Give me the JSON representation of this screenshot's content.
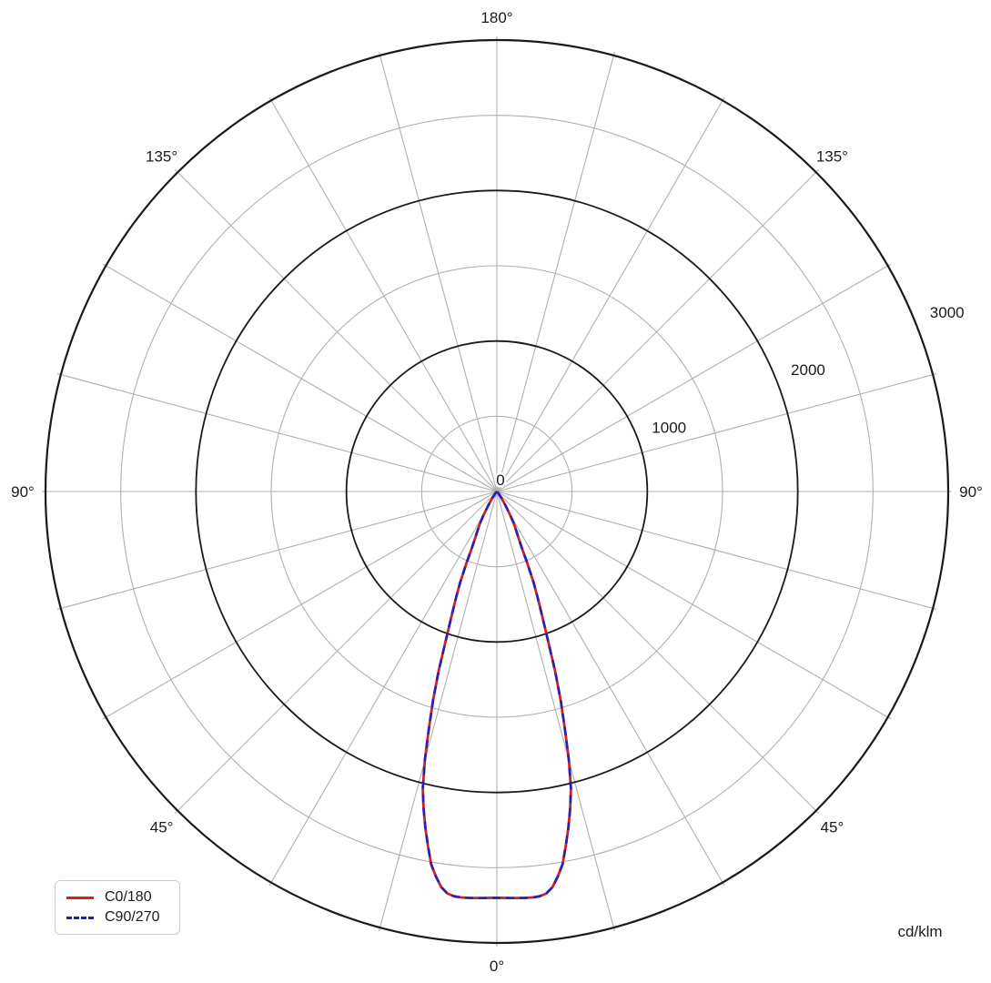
{
  "units_label": "cd/klm",
  "legend": {
    "entries": [
      {
        "label": "C0/180",
        "color": "#d62020",
        "line_style": "solid"
      },
      {
        "label": "C90/270",
        "color": "#2222bb",
        "line_style": "dashed"
      }
    ]
  },
  "colors": {
    "background": "#ffffff",
    "grid_minor": "#b0b0b0",
    "grid_major": "#1a1a1a",
    "text": "#1a1a1a",
    "legend_border": "#cccccc",
    "c0_series": "#d62020",
    "c90_series": "#2222bb"
  },
  "chart_data": {
    "type": "line",
    "layout": "polar",
    "title": "",
    "units": "cd/klm",
    "polar": {
      "zero_angle_position": "bottom",
      "angle_tick_step_deg": 15,
      "r_min": 0,
      "r_max": 3000,
      "minor_rings": [
        500,
        1500,
        2500
      ],
      "major_rings": [
        1000,
        2000,
        3000
      ],
      "ring_labels": [
        {
          "text": "0",
          "value": 0
        },
        {
          "text": "1000",
          "value": 1000
        },
        {
          "text": "2000",
          "value": 2000
        },
        {
          "text": "3000",
          "value": 3000
        }
      ],
      "angle_labels": [
        {
          "text": "0°",
          "angle_deg": 0
        },
        {
          "text": "45°",
          "angle_deg": 45
        },
        {
          "text": "45°",
          "angle_deg": -45
        },
        {
          "text": "90°",
          "angle_deg": 90
        },
        {
          "text": "90°",
          "angle_deg": -90
        },
        {
          "text": "135°",
          "angle_deg": 135
        },
        {
          "text": "135°",
          "angle_deg": -135
        },
        {
          "text": "180°",
          "angle_deg": 180
        }
      ],
      "grid_on": true,
      "legend_position": "bottom-left"
    },
    "series": [
      {
        "name": "C0/180",
        "color": "#d62020",
        "dash": "solid",
        "points_deg_cdklm": [
          [
            0,
            2700
          ],
          [
            1,
            2701
          ],
          [
            2,
            2703
          ],
          [
            3,
            2705
          ],
          [
            4,
            2707
          ],
          [
            5,
            2708
          ],
          [
            6,
            2705
          ],
          [
            7,
            2692
          ],
          [
            8,
            2655
          ],
          [
            9,
            2590
          ],
          [
            10,
            2515
          ],
          [
            11,
            2400
          ],
          [
            12,
            2285
          ],
          [
            13,
            2165
          ],
          [
            14,
            2035
          ],
          [
            15,
            1850
          ],
          [
            16,
            1640
          ],
          [
            17,
            1450
          ],
          [
            18,
            1250
          ],
          [
            19,
            1035
          ],
          [
            20,
            880
          ],
          [
            21,
            760
          ],
          [
            22,
            650
          ],
          [
            23,
            520
          ],
          [
            24,
            400
          ],
          [
            25,
            340
          ],
          [
            26,
            300
          ],
          [
            27,
            268
          ],
          [
            28,
            238
          ],
          [
            29,
            195
          ],
          [
            30,
            152
          ],
          [
            31,
            125
          ],
          [
            32,
            100
          ],
          [
            33,
            80
          ],
          [
            34,
            62
          ],
          [
            35,
            46
          ],
          [
            36,
            34
          ],
          [
            38,
            21
          ],
          [
            40,
            13
          ],
          [
            42,
            8
          ],
          [
            45,
            4
          ],
          [
            48,
            1
          ],
          [
            50,
            0
          ],
          [
            60,
            0
          ],
          [
            75,
            0
          ],
          [
            90,
            0
          ],
          [
            120,
            0
          ],
          [
            150,
            0
          ],
          [
            180,
            0
          ]
        ]
      },
      {
        "name": "C90/270",
        "color": "#2222bb",
        "dash": "dashed",
        "points_deg_cdklm": [
          [
            0,
            2700
          ],
          [
            1,
            2701
          ],
          [
            2,
            2703
          ],
          [
            3,
            2705
          ],
          [
            4,
            2707
          ],
          [
            5,
            2708
          ],
          [
            6,
            2705
          ],
          [
            7,
            2692
          ],
          [
            8,
            2655
          ],
          [
            9,
            2590
          ],
          [
            10,
            2515
          ],
          [
            11,
            2400
          ],
          [
            12,
            2285
          ],
          [
            13,
            2165
          ],
          [
            14,
            2035
          ],
          [
            15,
            1850
          ],
          [
            16,
            1640
          ],
          [
            17,
            1450
          ],
          [
            18,
            1250
          ],
          [
            19,
            1035
          ],
          [
            20,
            880
          ],
          [
            21,
            760
          ],
          [
            22,
            650
          ],
          [
            23,
            520
          ],
          [
            24,
            400
          ],
          [
            25,
            340
          ],
          [
            26,
            300
          ],
          [
            27,
            268
          ],
          [
            28,
            238
          ],
          [
            29,
            195
          ],
          [
            30,
            152
          ],
          [
            31,
            125
          ],
          [
            32,
            100
          ],
          [
            33,
            80
          ],
          [
            34,
            62
          ],
          [
            35,
            46
          ],
          [
            36,
            34
          ],
          [
            38,
            21
          ],
          [
            40,
            13
          ],
          [
            42,
            8
          ],
          [
            45,
            4
          ],
          [
            48,
            1
          ],
          [
            50,
            0
          ],
          [
            60,
            0
          ],
          [
            75,
            0
          ],
          [
            90,
            0
          ],
          [
            120,
            0
          ],
          [
            150,
            0
          ],
          [
            180,
            0
          ]
        ]
      }
    ]
  }
}
